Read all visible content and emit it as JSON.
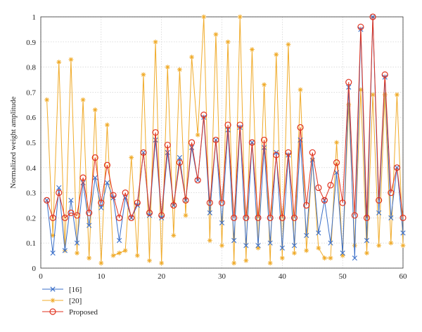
{
  "chart_data": {
    "type": "line",
    "title": "",
    "xlabel": "",
    "ylabel": "Normalized weight amplitude",
    "xlim": [
      0,
      60
    ],
    "ylim": [
      0,
      1
    ],
    "xticks": [
      0,
      10,
      20,
      30,
      40,
      50,
      60
    ],
    "yticks": [
      0,
      0.1,
      0.2,
      0.3,
      0.4,
      0.5,
      0.6,
      0.7,
      0.8,
      0.9,
      1
    ],
    "grid": true,
    "legend_position": "bottom-left",
    "x": [
      1,
      2,
      3,
      4,
      5,
      6,
      7,
      8,
      9,
      10,
      11,
      12,
      13,
      14,
      15,
      16,
      17,
      18,
      19,
      20,
      21,
      22,
      23,
      24,
      25,
      26,
      27,
      28,
      29,
      30,
      31,
      32,
      33,
      34,
      35,
      36,
      37,
      38,
      39,
      40,
      41,
      42,
      43,
      44,
      45,
      46,
      47,
      48,
      49,
      50,
      51,
      52,
      53,
      54,
      55,
      56,
      57,
      58,
      59,
      60
    ],
    "series": [
      {
        "name": "[16]",
        "color": "#3a6fc9",
        "marker": "x",
        "values": [
          0.27,
          0.06,
          0.32,
          0.07,
          0.27,
          0.1,
          0.34,
          0.17,
          0.36,
          0.24,
          0.34,
          0.28,
          0.11,
          0.28,
          0.2,
          0.25,
          0.46,
          0.21,
          0.51,
          0.2,
          0.46,
          0.25,
          0.44,
          0.27,
          0.48,
          0.35,
          0.6,
          0.22,
          0.51,
          0.18,
          0.55,
          0.11,
          0.56,
          0.09,
          0.5,
          0.09,
          0.48,
          0.1,
          0.46,
          0.08,
          0.45,
          0.09,
          0.51,
          0.13,
          0.43,
          0.14,
          0.27,
          0.1,
          0.38,
          0.06,
          0.72,
          0.04,
          0.95,
          0.11,
          1.0,
          0.22,
          0.76,
          0.2,
          0.4,
          0.14
        ]
      },
      {
        "name": "[20]",
        "color": "#f0ab2a",
        "marker": "star",
        "values": [
          0.67,
          0.13,
          0.82,
          0.07,
          0.83,
          0.06,
          0.67,
          0.04,
          0.63,
          0.02,
          0.57,
          0.05,
          0.06,
          0.07,
          0.44,
          0.05,
          0.77,
          0.03,
          0.9,
          0.02,
          0.8,
          0.13,
          0.79,
          0.21,
          0.84,
          0.53,
          1.0,
          0.11,
          0.93,
          0.09,
          0.9,
          0.02,
          1.0,
          0.03,
          0.87,
          0.08,
          0.73,
          0.02,
          0.85,
          0.04,
          0.89,
          0.06,
          0.71,
          0.07,
          0.43,
          0.08,
          0.04,
          0.04,
          0.5,
          0.05,
          0.65,
          0.09,
          0.71,
          0.06,
          0.69,
          0.09,
          0.69,
          0.1,
          0.69,
          0.09
        ]
      },
      {
        "name": "Proposed",
        "color": "#e0321e",
        "marker": "circle",
        "values": [
          0.27,
          0.2,
          0.3,
          0.2,
          0.22,
          0.21,
          0.36,
          0.22,
          0.44,
          0.26,
          0.41,
          0.29,
          0.2,
          0.3,
          0.2,
          0.26,
          0.46,
          0.22,
          0.54,
          0.21,
          0.49,
          0.25,
          0.42,
          0.27,
          0.5,
          0.35,
          0.61,
          0.26,
          0.51,
          0.26,
          0.57,
          0.2,
          0.57,
          0.2,
          0.5,
          0.2,
          0.51,
          0.2,
          0.45,
          0.2,
          0.46,
          0.2,
          0.56,
          0.25,
          0.46,
          0.32,
          0.27,
          0.33,
          0.42,
          0.26,
          0.74,
          0.21,
          0.96,
          0.2,
          1.0,
          0.27,
          0.77,
          0.3,
          0.4,
          0.2
        ]
      }
    ]
  }
}
